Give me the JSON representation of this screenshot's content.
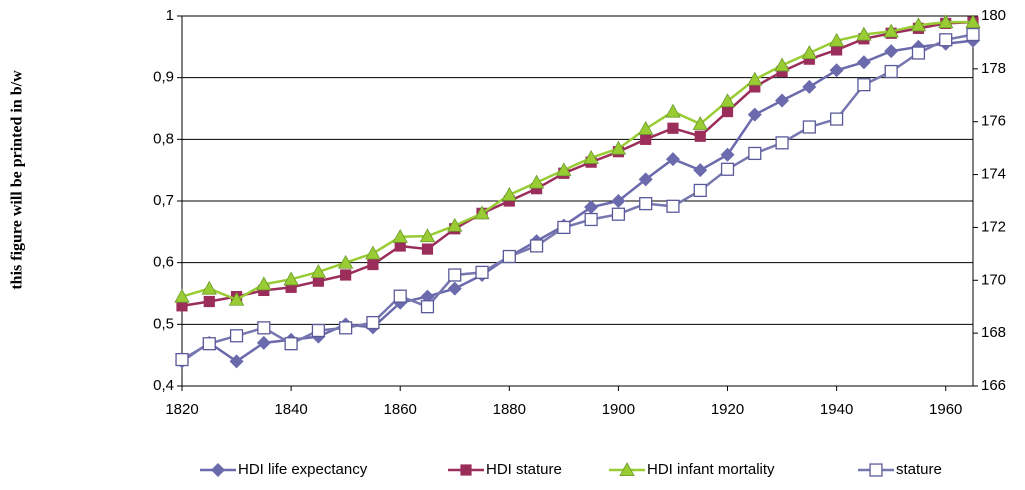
{
  "side_note": "this figure will be printed in b/w",
  "chart_data": {
    "type": "line",
    "x": [
      1820,
      1825,
      1830,
      1835,
      1840,
      1845,
      1850,
      1855,
      1860,
      1865,
      1870,
      1875,
      1880,
      1885,
      1890,
      1895,
      1900,
      1905,
      1910,
      1915,
      1920,
      1925,
      1930,
      1935,
      1940,
      1945,
      1950,
      1955,
      1960,
      1965
    ],
    "xlim": [
      1820,
      1965
    ],
    "xticks": [
      1820,
      1840,
      1860,
      1880,
      1900,
      1920,
      1940,
      1960
    ],
    "ylim": [
      0.4,
      1
    ],
    "yticks": [
      {
        "value": 0.4,
        "label": "0,4"
      },
      {
        "value": 0.5,
        "label": "0,5"
      },
      {
        "value": 0.6,
        "label": "0,6"
      },
      {
        "value": 0.7,
        "label": "0,7"
      },
      {
        "value": 0.8,
        "label": "0,8"
      },
      {
        "value": 0.9,
        "label": "0,9"
      },
      1
    ],
    "y2lim": [
      166,
      180
    ],
    "y2ticks": [
      166,
      168,
      170,
      172,
      174,
      176,
      178,
      180
    ],
    "grid": true,
    "legend": "bottom",
    "series": [
      {
        "name": "HDI life expectancy",
        "color": "#6a6aac",
        "marker": "diamond",
        "values": [
          0.44,
          0.47,
          0.44,
          0.47,
          0.475,
          0.48,
          0.5,
          0.495,
          0.535,
          0.545,
          0.558,
          0.58,
          0.61,
          0.635,
          0.66,
          0.69,
          0.7,
          0.735,
          0.768,
          0.75,
          0.775,
          0.84,
          0.863,
          0.885,
          0.912,
          0.925,
          0.943,
          0.95,
          0.955,
          0.96
        ]
      },
      {
        "name": "HDI stature",
        "color": "#9b2d5a",
        "marker": "square",
        "values": [
          0.53,
          0.537,
          0.545,
          0.555,
          0.56,
          0.57,
          0.58,
          0.597,
          0.627,
          0.622,
          0.655,
          0.68,
          0.7,
          0.72,
          0.745,
          0.763,
          0.78,
          0.8,
          0.818,
          0.805,
          0.845,
          0.885,
          0.91,
          0.93,
          0.945,
          0.963,
          0.972,
          0.98,
          0.988,
          0.99
        ]
      },
      {
        "name": "HDI infant mortality",
        "color": "#99cc33",
        "marker": "triangle",
        "values": [
          0.545,
          0.558,
          0.54,
          0.565,
          0.573,
          0.585,
          0.6,
          0.615,
          0.642,
          0.643,
          0.66,
          0.68,
          0.71,
          0.73,
          0.75,
          0.77,
          0.785,
          0.817,
          0.845,
          0.825,
          0.862,
          0.897,
          0.92,
          0.94,
          0.96,
          0.97,
          0.975,
          0.985,
          0.99,
          0.99
        ]
      },
      {
        "name": "stature",
        "color": "#7777b0",
        "marker": "open-square",
        "axis": "y2",
        "values": [
          167.0,
          167.6,
          167.9,
          168.2,
          167.6,
          168.1,
          168.2,
          168.4,
          169.4,
          169.0,
          170.2,
          170.3,
          170.9,
          171.3,
          172.0,
          172.3,
          172.5,
          172.9,
          172.8,
          173.4,
          174.2,
          174.8,
          175.2,
          175.8,
          176.1,
          177.4,
          177.9,
          178.6,
          179.1,
          179.3
        ]
      }
    ]
  }
}
